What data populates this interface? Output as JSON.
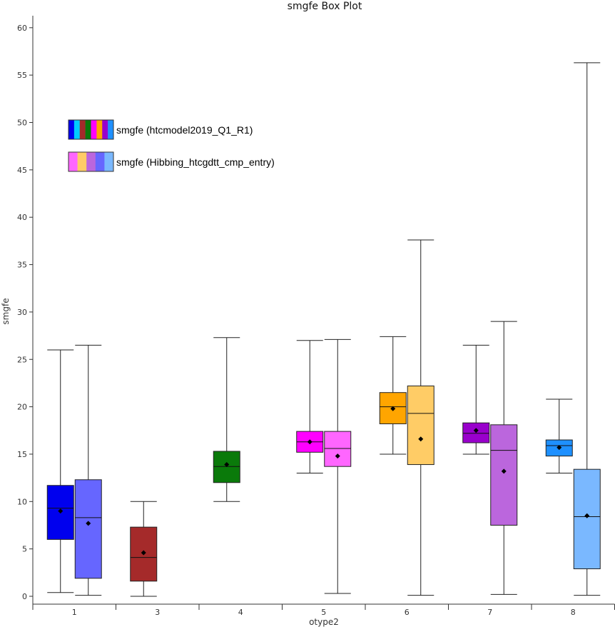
{
  "chart_data": {
    "type": "box",
    "title": "smgfe Box Plot",
    "xlabel": "otype2",
    "ylabel": "smgfe",
    "ylim": [
      0,
      62
    ],
    "yticks": [
      0,
      5,
      10,
      15,
      20,
      25,
      30,
      35,
      40,
      45,
      50,
      55,
      60
    ],
    "categories": [
      "1",
      "3",
      "4",
      "5",
      "6",
      "7",
      "8"
    ],
    "grid": false,
    "legend_position": "top-left",
    "series": [
      {
        "name": "smgfe (htcmodel2019_Q1_R1)",
        "swatch_colors": [
          "#0000ee",
          "#00ccff",
          "#a52a2a",
          "#0a7a0a",
          "#ff00ff",
          "#ffa500",
          "#9900cc",
          "#1e90ff"
        ],
        "boxes": [
          {
            "category": "1",
            "min": 0.4,
            "q1": 6.0,
            "median": 9.3,
            "q3": 11.7,
            "max": 26.0,
            "mean": 9.0,
            "color": "#0000ee"
          },
          {
            "category": "3",
            "min": 0.0,
            "q1": 1.6,
            "median": 4.1,
            "q3": 7.3,
            "max": 10.0,
            "mean": 4.6,
            "color": "#a52a2a"
          },
          {
            "category": "4",
            "min": 10.0,
            "q1": 12.0,
            "median": 13.7,
            "q3": 15.3,
            "max": 27.3,
            "mean": 13.9,
            "color": "#0a7a0a"
          },
          {
            "category": "5",
            "min": 13.0,
            "q1": 15.2,
            "median": 16.3,
            "q3": 17.4,
            "max": 27.0,
            "mean": 16.3,
            "color": "#ff00ff"
          },
          {
            "category": "6",
            "min": 15.0,
            "q1": 18.2,
            "median": 20.0,
            "q3": 21.5,
            "max": 27.4,
            "mean": 19.8,
            "color": "#ffa500"
          },
          {
            "category": "7",
            "min": 15.0,
            "q1": 16.2,
            "median": 17.2,
            "q3": 18.3,
            "max": 26.5,
            "mean": 17.5,
            "color": "#9900cc"
          },
          {
            "category": "8",
            "min": 13.0,
            "q1": 14.8,
            "median": 15.9,
            "q3": 16.5,
            "max": 20.8,
            "mean": 15.7,
            "color": "#1e90ff"
          }
        ]
      },
      {
        "name": "smgfe (Hibbing_htcgdtt_cmp_entry)",
        "swatch_colors": [
          "#ff66ff",
          "#ffcc66",
          "#bb66dd",
          "#6666ff",
          "#7ab8ff"
        ],
        "boxes": [
          {
            "category": "1",
            "min": 0.1,
            "q1": 1.9,
            "median": 8.3,
            "q3": 12.3,
            "max": 26.5,
            "mean": 7.7,
            "color": "#6666ff"
          },
          {
            "category": "5",
            "min": 0.3,
            "q1": 13.7,
            "median": 15.6,
            "q3": 17.4,
            "max": 27.1,
            "mean": 14.8,
            "color": "#ff66ff"
          },
          {
            "category": "6",
            "min": 0.1,
            "q1": 13.9,
            "median": 19.3,
            "q3": 22.2,
            "max": 37.6,
            "mean": 16.6,
            "color": "#ffcc66"
          },
          {
            "category": "7",
            "min": 0.2,
            "q1": 7.5,
            "median": 15.4,
            "q3": 18.1,
            "max": 29.0,
            "mean": 13.2,
            "color": "#bb66dd"
          },
          {
            "category": "8",
            "min": 0.1,
            "q1": 2.9,
            "median": 8.4,
            "q3": 13.4,
            "max": 56.3,
            "mean": 8.5,
            "color": "#7ab8ff"
          }
        ]
      }
    ]
  }
}
